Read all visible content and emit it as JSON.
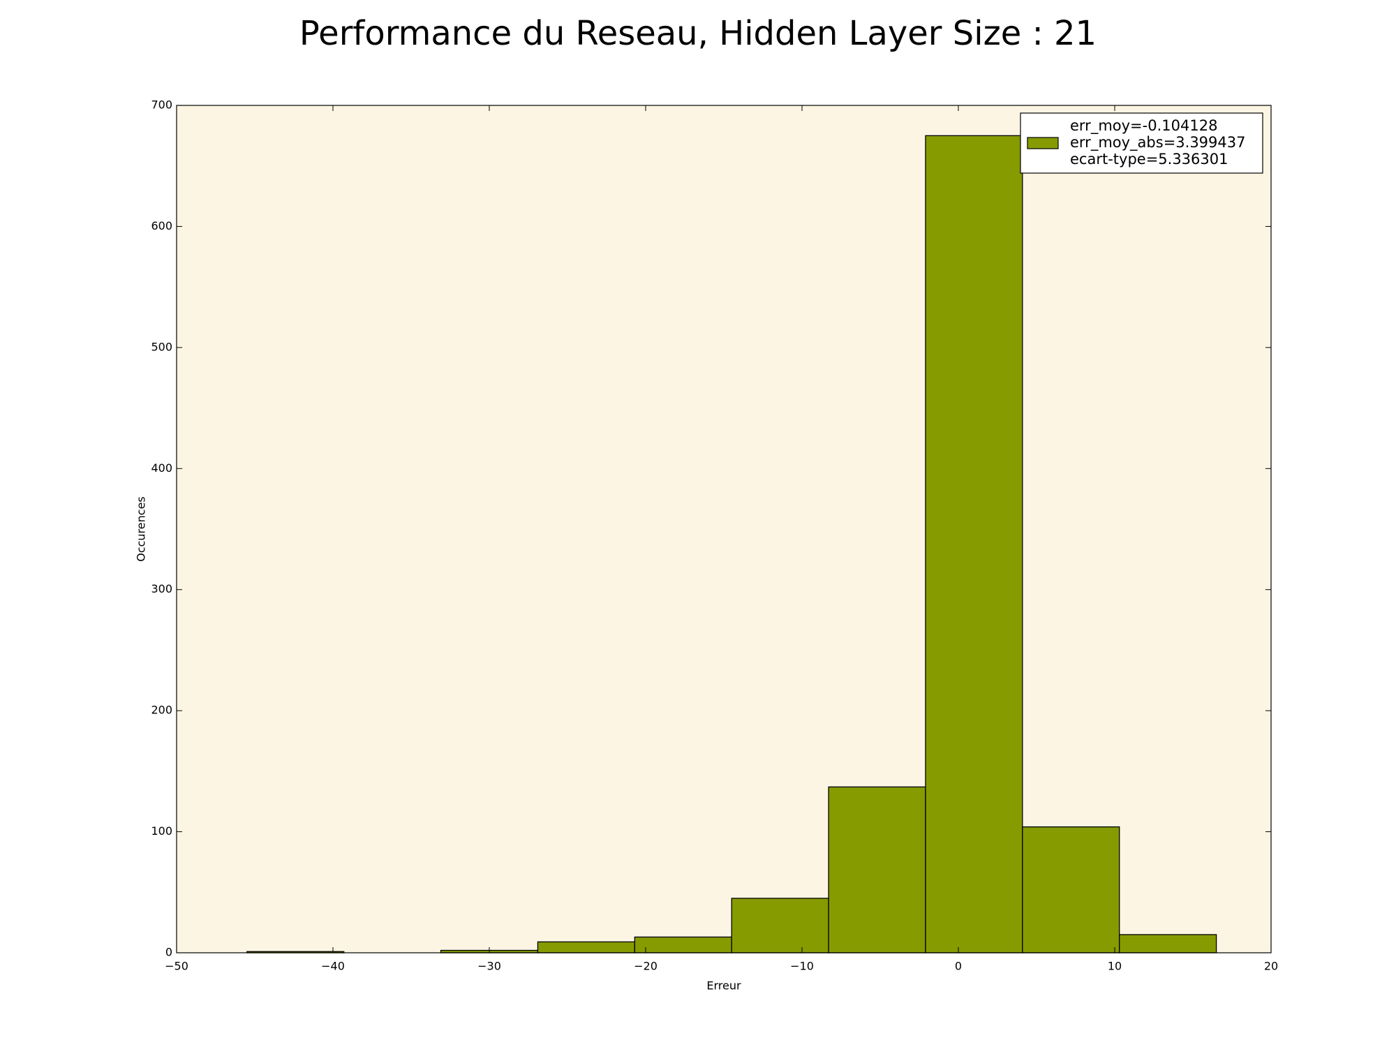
{
  "chart_data": {
    "type": "bar",
    "title": "Performance du Reseau, Hidden Layer Size : 21",
    "xlabel": "Erreur",
    "ylabel": "Occurences",
    "xlim": [
      -50,
      20
    ],
    "ylim": [
      0,
      700
    ],
    "xticks": [
      -50,
      -40,
      -30,
      -20,
      -10,
      0,
      10,
      20
    ],
    "xtick_labels": [
      "−50",
      "−40",
      "−30",
      "−20",
      "−10",
      "0",
      "10",
      "20"
    ],
    "yticks": [
      0,
      100,
      200,
      300,
      400,
      500,
      600,
      700
    ],
    "ytick_labels": [
      "0",
      "100",
      "200",
      "300",
      "400",
      "500",
      "600",
      "700"
    ],
    "bins": [
      {
        "x0": -45.5,
        "x1": -39.3,
        "value": 1
      },
      {
        "x0": -39.3,
        "x1": -33.1,
        "value": 0
      },
      {
        "x0": -33.1,
        "x1": -26.9,
        "value": 2
      },
      {
        "x0": -26.9,
        "x1": -20.7,
        "value": 9
      },
      {
        "x0": -20.7,
        "x1": -14.5,
        "value": 13
      },
      {
        "x0": -14.5,
        "x1": -8.3,
        "value": 45
      },
      {
        "x0": -8.3,
        "x1": -2.1,
        "value": 137
      },
      {
        "x0": -2.1,
        "x1": 4.1,
        "value": 675
      },
      {
        "x0": 4.1,
        "x1": 10.3,
        "value": 104
      },
      {
        "x0": 10.3,
        "x1": 16.5,
        "value": 15
      }
    ],
    "grid": false,
    "legend_position": "top-right",
    "legend": [
      "err_moy=-0.104128",
      "err_moy_abs=3.399437",
      "ecart-type=5.336301"
    ],
    "colors": {
      "bar": "#869b00",
      "plot_bg": "#fdf5e3",
      "edge": "#000000"
    }
  }
}
